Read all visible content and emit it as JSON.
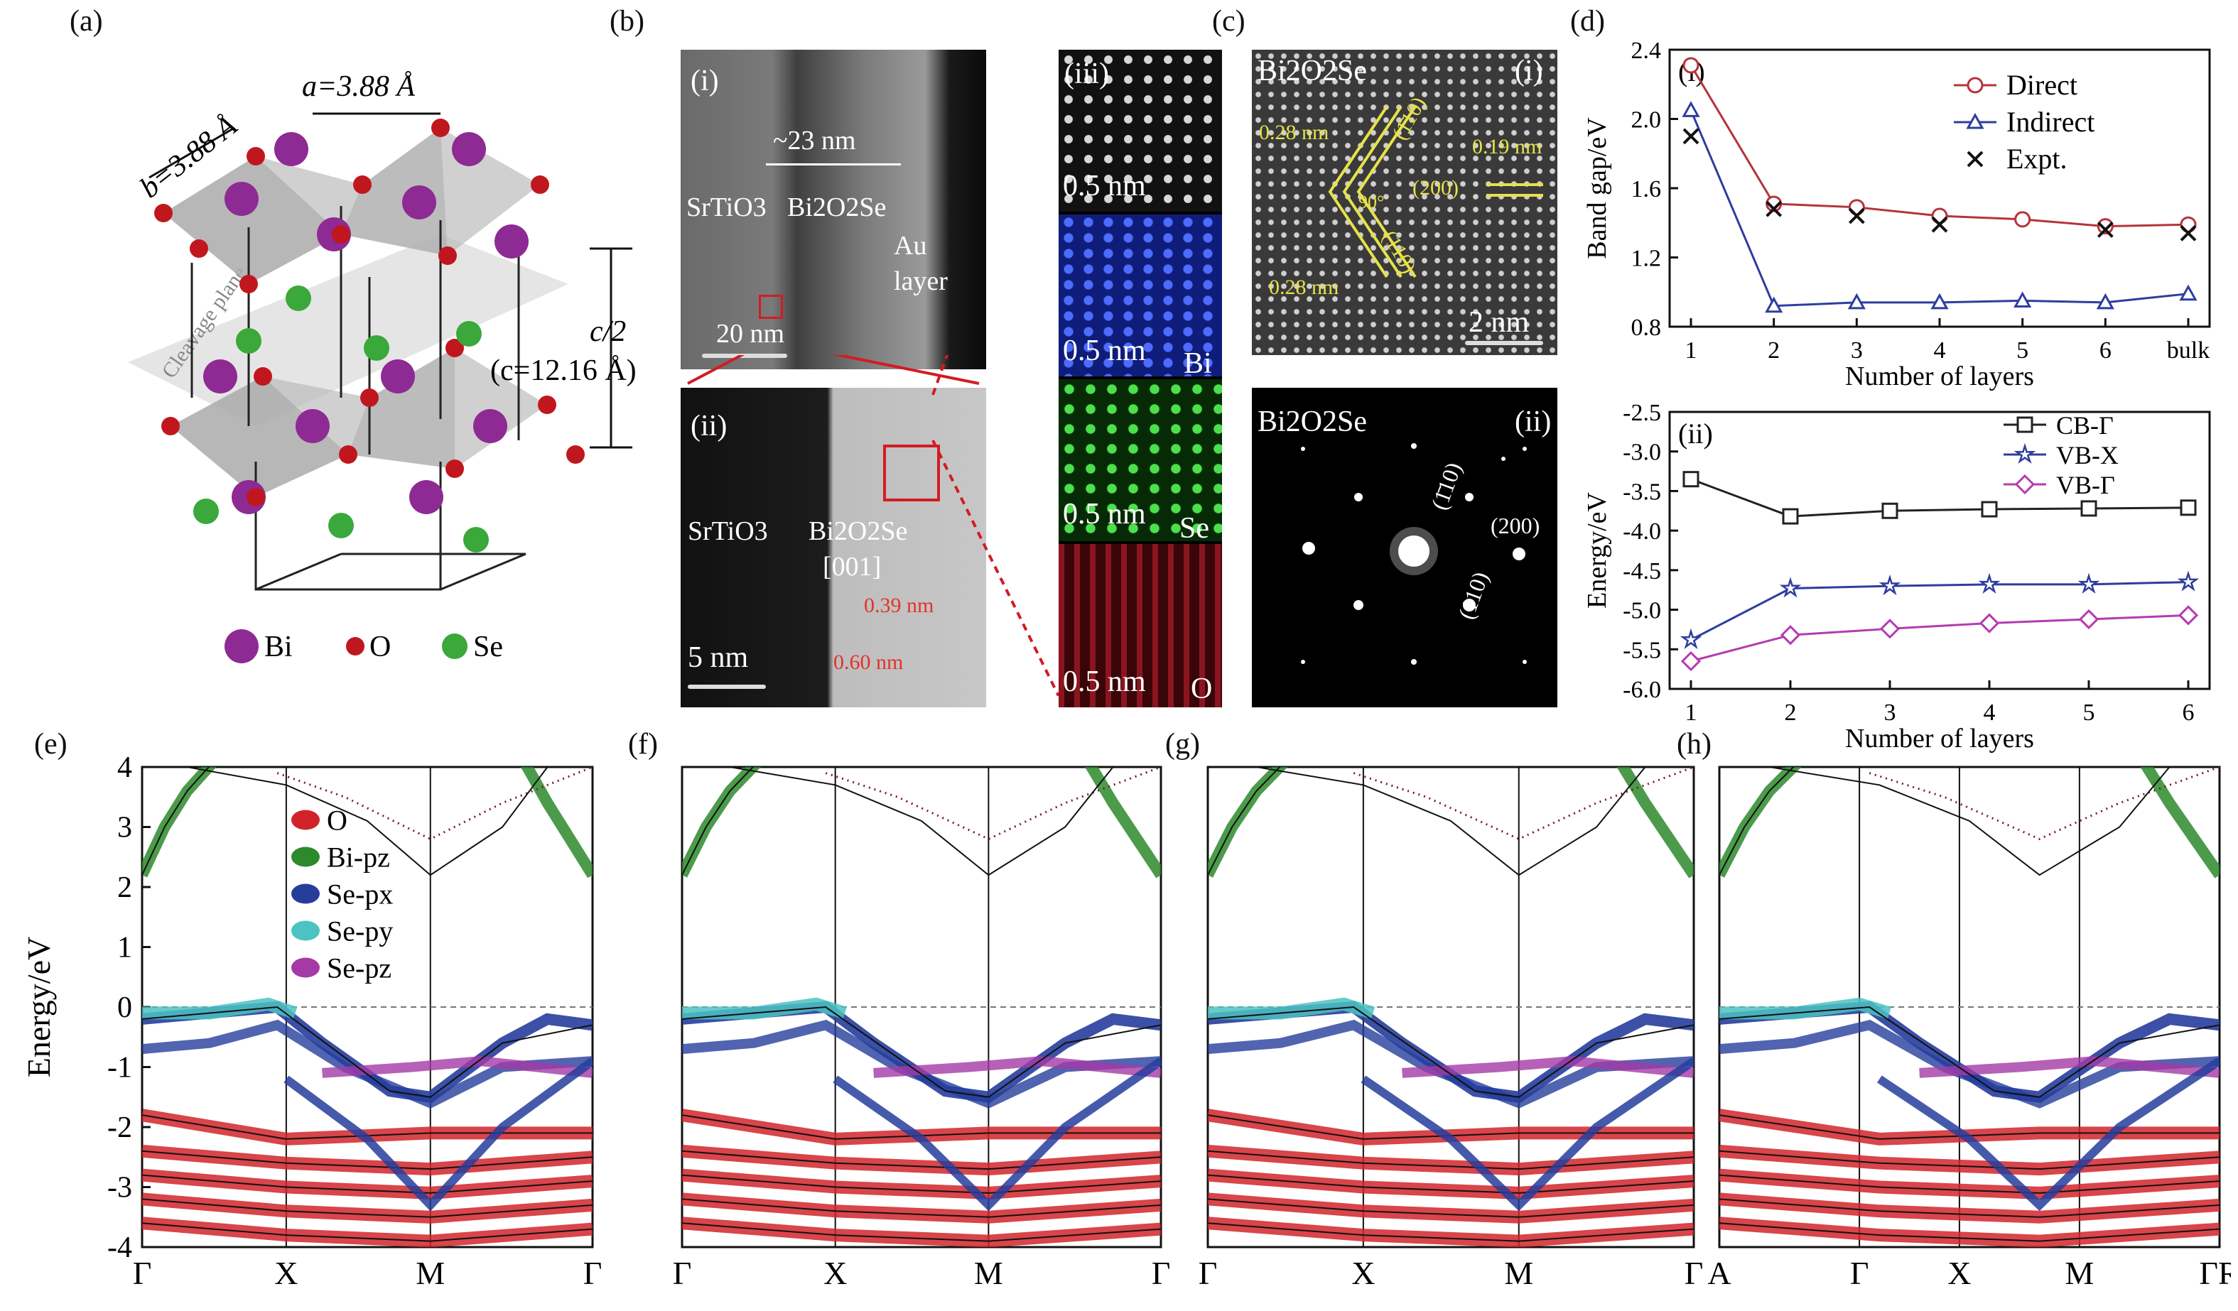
{
  "panel_labels": {
    "a": "(a)",
    "b": "(b)",
    "c": "(c)",
    "d": "(d)",
    "e": "(e)",
    "f": "(f)",
    "g": "(g)",
    "h": "(h)"
  },
  "structure": {
    "lattice_b": "b=3.88 Å",
    "lattice_a": "a=3.88 Å",
    "c_half": "c/2",
    "c_full": "(c=12.16 Å)",
    "cleavage": "Cleavage plane",
    "legend": [
      {
        "name": "Bi",
        "color": "#8e2a93"
      },
      {
        "name": "O",
        "color": "#c0171e"
      },
      {
        "name": "Se",
        "color": "#3aa83a"
      }
    ]
  },
  "tem_b": {
    "i": {
      "label": "(i)",
      "width": "~23 nm",
      "left": "SrTiO3",
      "mid": "Bi2O2Se",
      "right1": "Au",
      "right2": "layer",
      "scale": "20 nm"
    },
    "ii": {
      "label": "(ii)",
      "left": "SrTiO3",
      "mid": "Bi2O2Se",
      "dir": "[001]",
      "d1": "0.39 nm",
      "d2": "0.60 nm",
      "scale": "5 nm"
    },
    "iii": {
      "label": "(iii)",
      "scales": [
        "0.5 nm",
        "0.5 nm",
        "0.5 nm",
        "0.5 nm"
      ],
      "elements": [
        "",
        "Bi",
        "Se",
        "O"
      ]
    }
  },
  "tem_c": {
    "i": {
      "label": "(i)",
      "title": "Bi2O2Se",
      "d1": "0.28 nm",
      "d2": "0.28 nm",
      "d3": "0.19 nm",
      "p1": "(1̄10)",
      "p2": "(200)",
      "p3": "(110)",
      "angle": "90°",
      "scale": "2 nm"
    },
    "ii": {
      "label": "(ii)",
      "title": "Bi2O2Se",
      "p1": "(1̄10)",
      "p2": "(200)",
      "p3": "(110)"
    }
  },
  "chart_data": [
    {
      "id": "d-i",
      "type": "line",
      "sublabel": "(i)",
      "xlabel": "Number of layers",
      "ylabel": "Band gap/eV",
      "categories": [
        "1",
        "2",
        "3",
        "4",
        "5",
        "6",
        "bulk"
      ],
      "ylim": [
        0.8,
        2.4
      ],
      "yticks": [
        "0.8",
        "1.2",
        "1.6",
        "2.0",
        "2.4"
      ],
      "series": [
        {
          "name": "Direct",
          "color": "#b5343a",
          "marker": "circle",
          "values": [
            2.31,
            1.51,
            1.49,
            1.44,
            1.42,
            1.38,
            1.39
          ]
        },
        {
          "name": "Indirect",
          "color": "#2e3d9e",
          "marker": "triangle",
          "values": [
            2.05,
            0.92,
            0.94,
            0.94,
            0.95,
            0.94,
            0.99
          ]
        },
        {
          "name": "Expt.",
          "color": "#111111",
          "marker": "cross",
          "values": [
            1.9,
            1.48,
            1.44,
            1.39,
            null,
            1.36,
            1.34
          ]
        }
      ]
    },
    {
      "id": "d-ii",
      "type": "line",
      "sublabel": "(ii)",
      "xlabel": "Number of layers",
      "ylabel": "Energy/eV",
      "categories": [
        "1",
        "2",
        "3",
        "4",
        "5",
        "6"
      ],
      "ylim": [
        -6.0,
        -2.5
      ],
      "yticks": [
        "-6.0",
        "-5.5",
        "-5.0",
        "-4.5",
        "-4.0",
        "-3.5",
        "-3.0",
        "-2.5"
      ],
      "series": [
        {
          "name": "CB-Γ",
          "color": "#222222",
          "marker": "square",
          "values": [
            -3.35,
            -3.82,
            -3.75,
            -3.73,
            -3.72,
            -3.71
          ]
        },
        {
          "name": "VB-X",
          "color": "#2e3d9e",
          "marker": "star",
          "values": [
            -5.38,
            -4.73,
            -4.7,
            -4.68,
            -4.68,
            -4.65
          ]
        },
        {
          "name": "VB-Γ",
          "color": "#b43bb0",
          "marker": "diamond",
          "values": [
            -5.65,
            -5.32,
            -5.24,
            -5.17,
            -5.12,
            -5.07
          ]
        }
      ]
    },
    {
      "id": "e",
      "type": "line",
      "ylabel": "Energy/eV",
      "ylim": [
        -4,
        4
      ],
      "yticks": [
        "4",
        "3",
        "2",
        "1",
        "0",
        "-1",
        "-2",
        "-3",
        "-4"
      ],
      "kpoints": [
        "Γ",
        "X",
        "M",
        "Γ"
      ],
      "legend": [
        {
          "name": "O",
          "color": "#d1242a"
        },
        {
          "name": "Bi-pz",
          "color": "#2c8a2c"
        },
        {
          "name": "Se-px",
          "color": "#263d9c"
        },
        {
          "name": "Se-py",
          "color": "#4cc2c2"
        },
        {
          "name": "Se-pz",
          "color": "#a43aa6"
        }
      ]
    },
    {
      "id": "f",
      "type": "line",
      "ylim": [
        -4,
        4
      ],
      "kpoints": [
        "Γ",
        "X",
        "M",
        "Γ"
      ]
    },
    {
      "id": "g",
      "type": "line",
      "ylim": [
        -4,
        4
      ],
      "kpoints": [
        "Γ",
        "X",
        "M",
        "Γ"
      ]
    },
    {
      "id": "h",
      "type": "line",
      "ylim": [
        -4,
        4
      ],
      "kpoints": [
        "A",
        "Γ",
        "X",
        "M",
        "ΓR"
      ]
    }
  ]
}
